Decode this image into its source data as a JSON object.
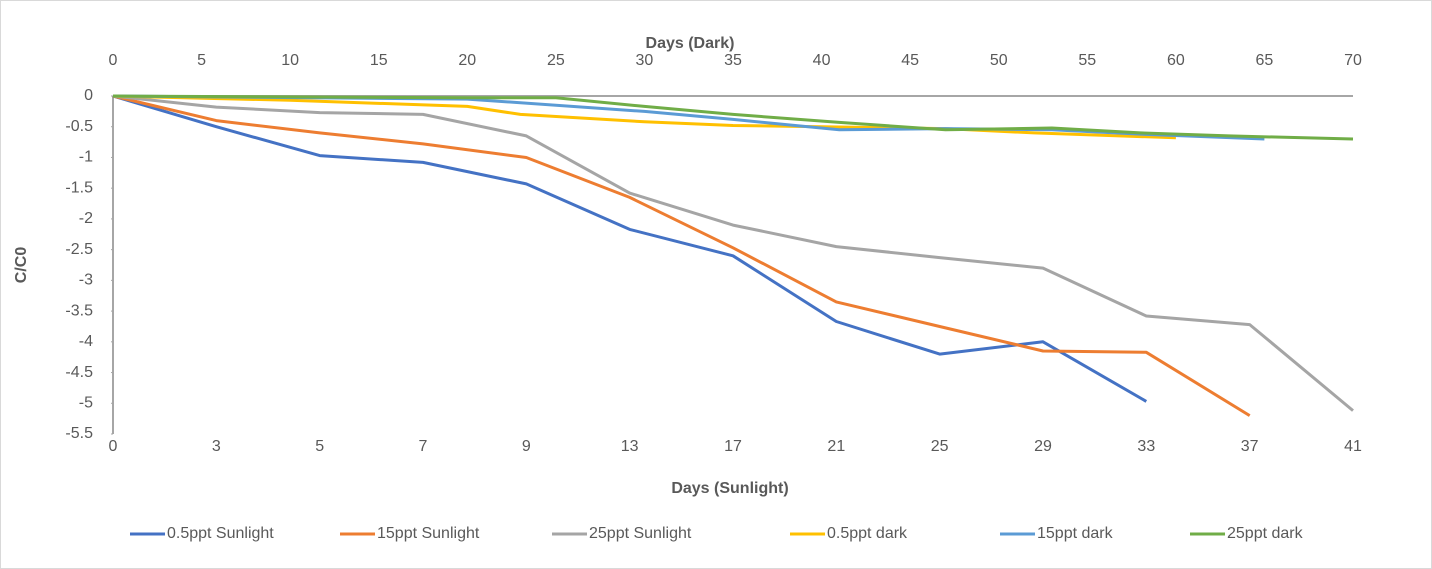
{
  "chart_data": {
    "type": "line",
    "xlabel": "Days (Sunlight)",
    "x2label": "Days (Dark)",
    "ylabel": "C/C0",
    "categories": [
      "0",
      "3",
      "5",
      "7",
      "9",
      "13",
      "17",
      "21",
      "25",
      "29",
      "33",
      "37",
      "41"
    ],
    "x2lim": [
      0,
      70
    ],
    "x2ticks": [
      0,
      5,
      10,
      15,
      20,
      25,
      30,
      35,
      40,
      45,
      50,
      55,
      60,
      65,
      70
    ],
    "ylim": [
      -5.5,
      0
    ],
    "yticks": [
      0,
      -0.5,
      -1,
      -1.5,
      -2,
      -2.5,
      -3,
      -3.5,
      -4,
      -4.5,
      -5,
      -5.5
    ],
    "series": [
      {
        "name": "0.5ppt Sunlight",
        "color": "#4472c4",
        "values": [
          0,
          -0.5,
          -0.97,
          -1.08,
          -1.43,
          -2.17,
          -2.6,
          -3.67,
          -4.2,
          -4.0,
          -4.97,
          null,
          null
        ]
      },
      {
        "name": "15ppt Sunlight",
        "color": "#ed7d31",
        "values": [
          0,
          -0.4,
          -0.6,
          -0.78,
          -1.0,
          -1.65,
          -2.47,
          -3.35,
          -3.75,
          -4.15,
          -4.17,
          -5.2,
          null
        ]
      },
      {
        "name": "25ppt Sunlight",
        "color": "#a5a5a5",
        "values": [
          0,
          -0.18,
          -0.27,
          -0.3,
          -0.65,
          -1.58,
          -2.1,
          -2.45,
          -2.63,
          -2.8,
          -3.58,
          -3.72,
          -5.12
        ]
      },
      {
        "name": "0.5ppt dark",
        "color": "#ffc000",
        "axis": "x2",
        "x": [
          0,
          10,
          20,
          23,
          30,
          35,
          40,
          47,
          52,
          60
        ],
        "values": [
          0,
          -0.07,
          -0.17,
          -0.3,
          -0.42,
          -0.48,
          -0.5,
          -0.53,
          -0.6,
          -0.68
        ]
      },
      {
        "name": "15ppt dark",
        "color": "#5b9bd5",
        "axis": "x2",
        "x": [
          0,
          20,
          30,
          35,
          41,
          47,
          53,
          58,
          65
        ],
        "values": [
          0,
          -0.05,
          -0.25,
          -0.38,
          -0.55,
          -0.53,
          -0.55,
          -0.62,
          -0.7
        ]
      },
      {
        "name": "25ppt dark",
        "color": "#70ad47",
        "axis": "x2",
        "x": [
          0,
          20,
          25,
          30,
          35,
          41,
          47,
          53,
          58,
          63,
          70
        ],
        "values": [
          0,
          -0.03,
          -0.03,
          -0.17,
          -0.3,
          -0.43,
          -0.55,
          -0.52,
          -0.6,
          -0.65,
          -0.7
        ]
      }
    ]
  }
}
